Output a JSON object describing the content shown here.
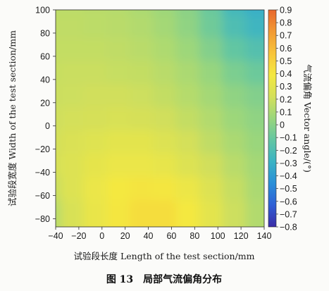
{
  "figure": {
    "caption": "图 13　局部气流偏角分布"
  },
  "chart_data": {
    "type": "heatmap",
    "xlabel": "试验段长度 Length of the test section/mm",
    "ylabel": "试验段宽度 Width of the test section/mm",
    "colorbar_label": "气流偏角 Vector angle/(°)",
    "xlim": [
      -40,
      140
    ],
    "ylim": [
      -87,
      100
    ],
    "x_ticks": [
      -40,
      -20,
      0,
      20,
      40,
      60,
      80,
      100,
      120,
      140
    ],
    "y_ticks": [
      -80,
      -60,
      -40,
      -20,
      0,
      20,
      40,
      60,
      80,
      100
    ],
    "colorbar_range": [
      -0.8,
      0.9
    ],
    "colorbar_ticks": [
      0.9,
      0.8,
      0.7,
      0.6,
      0.5,
      0.4,
      0.3,
      0.2,
      0.1,
      0,
      -0.1,
      -0.2,
      -0.3,
      -0.4,
      -0.5,
      -0.6,
      -0.7,
      -0.8
    ],
    "colorbar_tick_labels": [
      "0.9",
      "0.8",
      "0.7",
      "0.6",
      "0.5",
      "0.4",
      "0.3",
      "0.2",
      "0.1",
      "0",
      "−0.1",
      "−0.2",
      "−0.3",
      "−0.4",
      "−0.5",
      "−0.6",
      "−0.7",
      "−0.8"
    ],
    "colormap": [
      "#3b2ca6",
      "#2f5fd6",
      "#2a8fd8",
      "#3ab3c4",
      "#62c6a2",
      "#9ad67c",
      "#d4e05a",
      "#f4e840",
      "#f8c43a",
      "#f29a34",
      "#e8672c"
    ],
    "grid_x": [
      -40,
      -20,
      0,
      20,
      40,
      60,
      80,
      100,
      120,
      140
    ],
    "grid_y": [
      100,
      80,
      60,
      40,
      20,
      0,
      -20,
      -40,
      -60,
      -80
    ],
    "values": [
      [
        0.15,
        0.15,
        0.14,
        0.13,
        0.1,
        0.06,
        0.0,
        -0.1,
        -0.25,
        -0.32
      ],
      [
        0.16,
        0.16,
        0.15,
        0.14,
        0.12,
        0.08,
        0.02,
        -0.08,
        -0.2,
        -0.27
      ],
      [
        0.17,
        0.17,
        0.17,
        0.16,
        0.14,
        0.11,
        0.06,
        -0.02,
        -0.12,
        -0.18
      ],
      [
        0.18,
        0.19,
        0.19,
        0.18,
        0.17,
        0.14,
        0.1,
        0.04,
        -0.04,
        -0.09
      ],
      [
        0.19,
        0.2,
        0.21,
        0.21,
        0.2,
        0.17,
        0.13,
        0.08,
        0.02,
        -0.02
      ],
      [
        0.2,
        0.22,
        0.23,
        0.24,
        0.23,
        0.21,
        0.17,
        0.12,
        0.06,
        0.02
      ],
      [
        0.21,
        0.25,
        0.28,
        0.3,
        0.3,
        0.27,
        0.22,
        0.16,
        0.1,
        0.05
      ],
      [
        0.22,
        0.27,
        0.31,
        0.34,
        0.34,
        0.32,
        0.27,
        0.21,
        0.14,
        0.08
      ],
      [
        0.18,
        0.27,
        0.34,
        0.39,
        0.41,
        0.4,
        0.35,
        0.27,
        0.18,
        0.1
      ],
      [
        0.12,
        0.24,
        0.33,
        0.4,
        0.44,
        0.44,
        0.39,
        0.3,
        0.2,
        0.12
      ]
    ]
  }
}
